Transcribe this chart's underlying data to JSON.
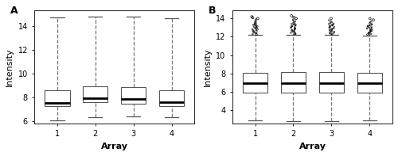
{
  "panel_A": {
    "label": "A",
    "xlabel": "Array",
    "ylabel": "Intensity",
    "xlim": [
      0.4,
      4.6
    ],
    "ylim": [
      5.8,
      15.3
    ],
    "yticks": [
      6,
      8,
      10,
      12,
      14
    ],
    "xticks": [
      1,
      2,
      3,
      4
    ],
    "boxes": [
      {
        "x": 1,
        "q1": 7.3,
        "median": 7.55,
        "q3": 8.6,
        "whislo": 6.05,
        "whishi": 14.7
      },
      {
        "x": 2,
        "q1": 7.6,
        "median": 7.95,
        "q3": 8.9,
        "whislo": 6.35,
        "whishi": 14.75
      },
      {
        "x": 3,
        "q1": 7.5,
        "median": 7.85,
        "q3": 8.85,
        "whislo": 6.4,
        "whishi": 14.75
      },
      {
        "x": 4,
        "q1": 7.3,
        "median": 7.6,
        "q3": 8.6,
        "whislo": 6.35,
        "whishi": 14.65
      }
    ],
    "box_width": 0.65,
    "box_color": "white",
    "median_color": "black",
    "whisker_style": "--",
    "whisker_color": "#777777",
    "cap_color": "#555555",
    "box_edge_color": "#555555"
  },
  "panel_B": {
    "label": "B",
    "xlabel": "Array",
    "ylabel": "Intensity",
    "xlim": [
      0.4,
      4.6
    ],
    "ylim": [
      2.5,
      14.9
    ],
    "yticks": [
      4,
      6,
      8,
      10,
      12,
      14
    ],
    "xticks": [
      1,
      2,
      3,
      4
    ],
    "boxes": [
      {
        "x": 1,
        "q1": 5.9,
        "median": 6.9,
        "q3": 8.1,
        "whislo": 2.85,
        "whishi": 12.2,
        "flier_high_dense": [
          12.25,
          12.3,
          12.35,
          12.4,
          12.45,
          12.5,
          12.55,
          12.6,
          12.65,
          12.7,
          12.75,
          12.8,
          12.85,
          12.9,
          12.95,
          13.0,
          13.05,
          13.1,
          13.15,
          13.2,
          13.25,
          13.3,
          13.35,
          13.4,
          13.45,
          13.5,
          13.6,
          13.7,
          13.8,
          13.9
        ],
        "flier_high_sparse": [
          14.0,
          14.1,
          14.2
        ]
      },
      {
        "x": 2,
        "q1": 5.9,
        "median": 6.9,
        "q3": 8.15,
        "whislo": 2.75,
        "whishi": 12.2,
        "flier_high_dense": [
          12.25,
          12.3,
          12.35,
          12.4,
          12.45,
          12.5,
          12.55,
          12.6,
          12.65,
          12.7,
          12.75,
          12.8,
          12.85,
          12.9,
          12.95,
          13.0,
          13.05,
          13.1,
          13.15,
          13.2,
          13.25,
          13.3,
          13.35,
          13.4,
          13.45,
          13.5,
          13.6,
          13.7,
          13.8,
          13.9
        ],
        "flier_high_sparse": [
          14.0,
          14.15,
          14.3
        ]
      },
      {
        "x": 3,
        "q1": 5.9,
        "median": 6.9,
        "q3": 8.15,
        "whislo": 2.75,
        "whishi": 12.2,
        "flier_high_dense": [
          12.25,
          12.3,
          12.35,
          12.4,
          12.45,
          12.5,
          12.55,
          12.6,
          12.65,
          12.7,
          12.75,
          12.8,
          12.85,
          12.9,
          12.95,
          13.0,
          13.05,
          13.1,
          13.15,
          13.2,
          13.25,
          13.3,
          13.35,
          13.4,
          13.45,
          13.5,
          13.6,
          13.7,
          13.8
        ],
        "flier_high_sparse": [
          14.0
        ]
      },
      {
        "x": 4,
        "q1": 5.9,
        "median": 6.9,
        "q3": 8.05,
        "whislo": 2.85,
        "whishi": 12.15,
        "flier_high_dense": [
          12.2,
          12.25,
          12.3,
          12.35,
          12.4,
          12.45,
          12.5,
          12.55,
          12.6,
          12.65,
          12.7,
          12.75,
          12.8,
          12.85,
          12.9,
          12.95,
          13.0,
          13.05,
          13.1,
          13.15,
          13.2,
          13.25,
          13.3,
          13.35,
          13.4,
          13.5,
          13.6,
          13.7
        ],
        "flier_high_sparse": [
          13.85,
          14.0
        ]
      }
    ],
    "box_width": 0.65,
    "box_color": "white",
    "median_color": "black",
    "whisker_style": "--",
    "whisker_color": "#777777",
    "cap_color": "#555555",
    "box_edge_color": "#555555"
  }
}
